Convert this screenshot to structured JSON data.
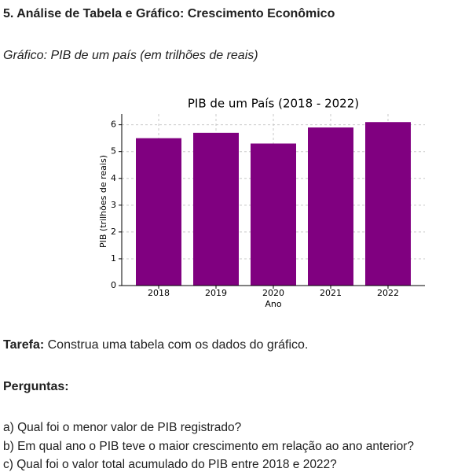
{
  "heading": "5. Análise de Tabela e Gráfico: Crescimento Econômico",
  "caption": "Gráfico: PIB de um país (em trilhões de reais)",
  "chart_data": {
    "type": "bar",
    "title": "PIB de um País (2018 - 2022)",
    "x_label": "Ano",
    "y_label": "PIB (trilhões de reais)",
    "categories": [
      "2018",
      "2019",
      "2020",
      "2021",
      "2022"
    ],
    "values": [
      5.5,
      5.7,
      5.3,
      5.9,
      6.1
    ],
    "color": "#800080",
    "ylim": [
      0,
      6.4
    ],
    "yticks": [
      0,
      1,
      2,
      3,
      4,
      5,
      6
    ],
    "grid": true
  },
  "task": {
    "label": "Tarefa:",
    "text": " Construa uma tabela com os dados do gráfico."
  },
  "questions_title": "Perguntas:",
  "questions": [
    "a) Qual foi o menor valor de PIB registrado?",
    "b) Em qual ano o PIB teve o maior crescimento em relação ao ano anterior?",
    "c) Qual foi o valor total acumulado do PIB entre 2018 e 2022?"
  ]
}
